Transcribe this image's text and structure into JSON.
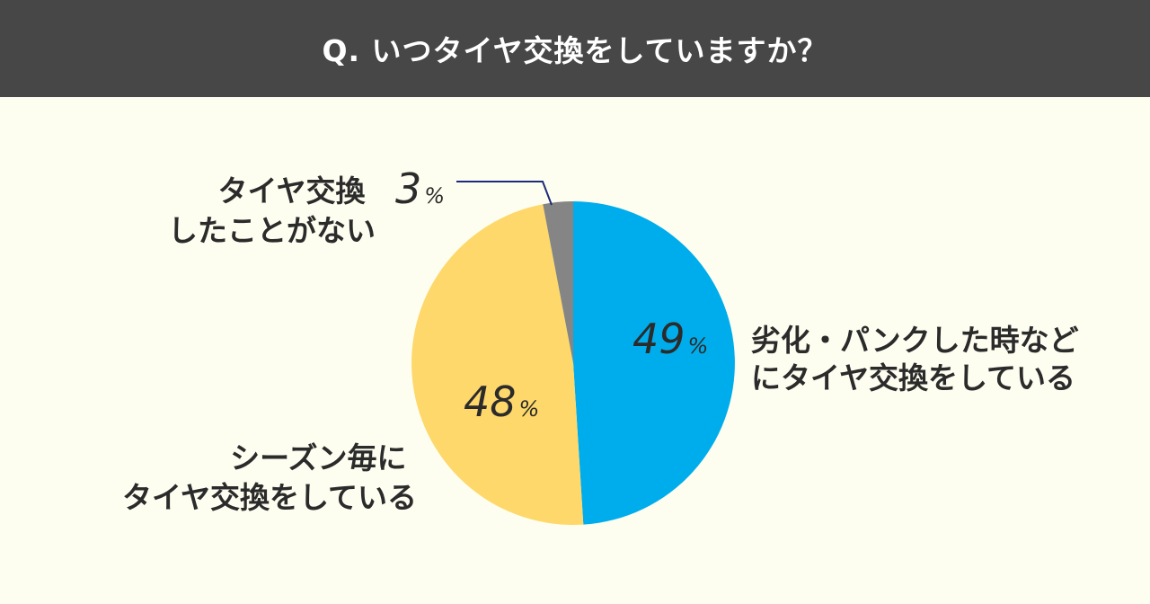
{
  "header": {
    "title": "Q. いつタイヤ交換をしていますか？"
  },
  "chart_data": {
    "type": "pie",
    "title": "Q. いつタイヤ交換をしていますか？",
    "unit": "%",
    "slices": [
      {
        "label_lines": [
          "劣化・パンクした時など",
          "にタイヤ交換をしている"
        ],
        "value": 49,
        "color": "#00adec"
      },
      {
        "label_lines": [
          "シーズン毎に",
          "タイヤ交換をしている"
        ],
        "value": 48,
        "color": "#fed86a"
      },
      {
        "label_lines": [
          "タイヤ交換",
          "したことがない"
        ],
        "value": 3,
        "color": "#858585"
      }
    ],
    "start_angle": "12 o'clock",
    "direction": "clockwise",
    "leader_line_color": "#1d2b7a"
  }
}
